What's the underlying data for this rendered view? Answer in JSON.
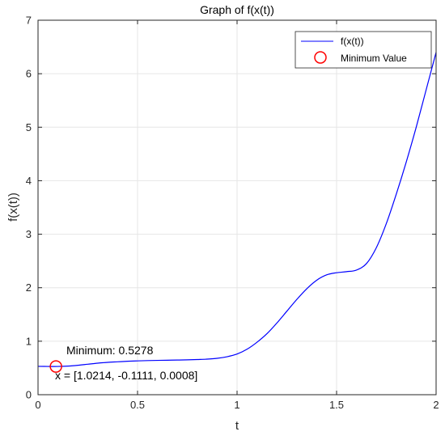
{
  "chart_data": {
    "type": "line",
    "title": "Graph of f(x(t))",
    "xlabel": "t",
    "ylabel": "f(x(t))",
    "xlim": [
      0,
      2
    ],
    "ylim": [
      0,
      7
    ],
    "x_ticks": [
      "0",
      "0.5",
      "1",
      "1.5",
      "2"
    ],
    "y_ticks": [
      "0",
      "1",
      "2",
      "3",
      "4",
      "5",
      "6",
      "7"
    ],
    "grid": true,
    "legend_position": "top-right",
    "series": [
      {
        "name": "f(x(t))",
        "color": "#0000ff",
        "x": [
          0,
          0.05,
          0.1,
          0.15,
          0.2,
          0.25,
          0.3,
          0.35,
          0.4,
          0.45,
          0.5,
          0.55,
          0.6,
          0.65,
          0.7,
          0.75,
          0.8,
          0.85,
          0.9,
          0.95,
          1.0,
          1.05,
          1.1,
          1.15,
          1.2,
          1.25,
          1.3,
          1.35,
          1.4,
          1.45,
          1.5,
          1.55,
          1.6,
          1.65,
          1.7,
          1.75,
          1.8,
          1.85,
          1.9,
          1.95,
          2.0
        ],
        "y": [
          0.53,
          0.528,
          0.528,
          0.535,
          0.55,
          0.57,
          0.59,
          0.605,
          0.615,
          0.625,
          0.632,
          0.638,
          0.642,
          0.645,
          0.648,
          0.652,
          0.658,
          0.665,
          0.68,
          0.71,
          0.76,
          0.85,
          0.98,
          1.14,
          1.34,
          1.56,
          1.78,
          1.98,
          2.14,
          2.24,
          2.28,
          2.3,
          2.33,
          2.45,
          2.75,
          3.2,
          3.75,
          4.35,
          5.0,
          5.7,
          6.4
        ]
      },
      {
        "name": "Minimum Value",
        "color": "#ff0000",
        "marker": "circle",
        "x": [
          0.09
        ],
        "y": [
          0.5278
        ]
      }
    ],
    "annotations": [
      {
        "text": "Minimum: 0.5278",
        "x": 0.14,
        "y": 0.85
      },
      {
        "text": "x = [1.0214, -0.1111, 0.0008]",
        "x": 0.09,
        "y": 0.33
      }
    ]
  }
}
